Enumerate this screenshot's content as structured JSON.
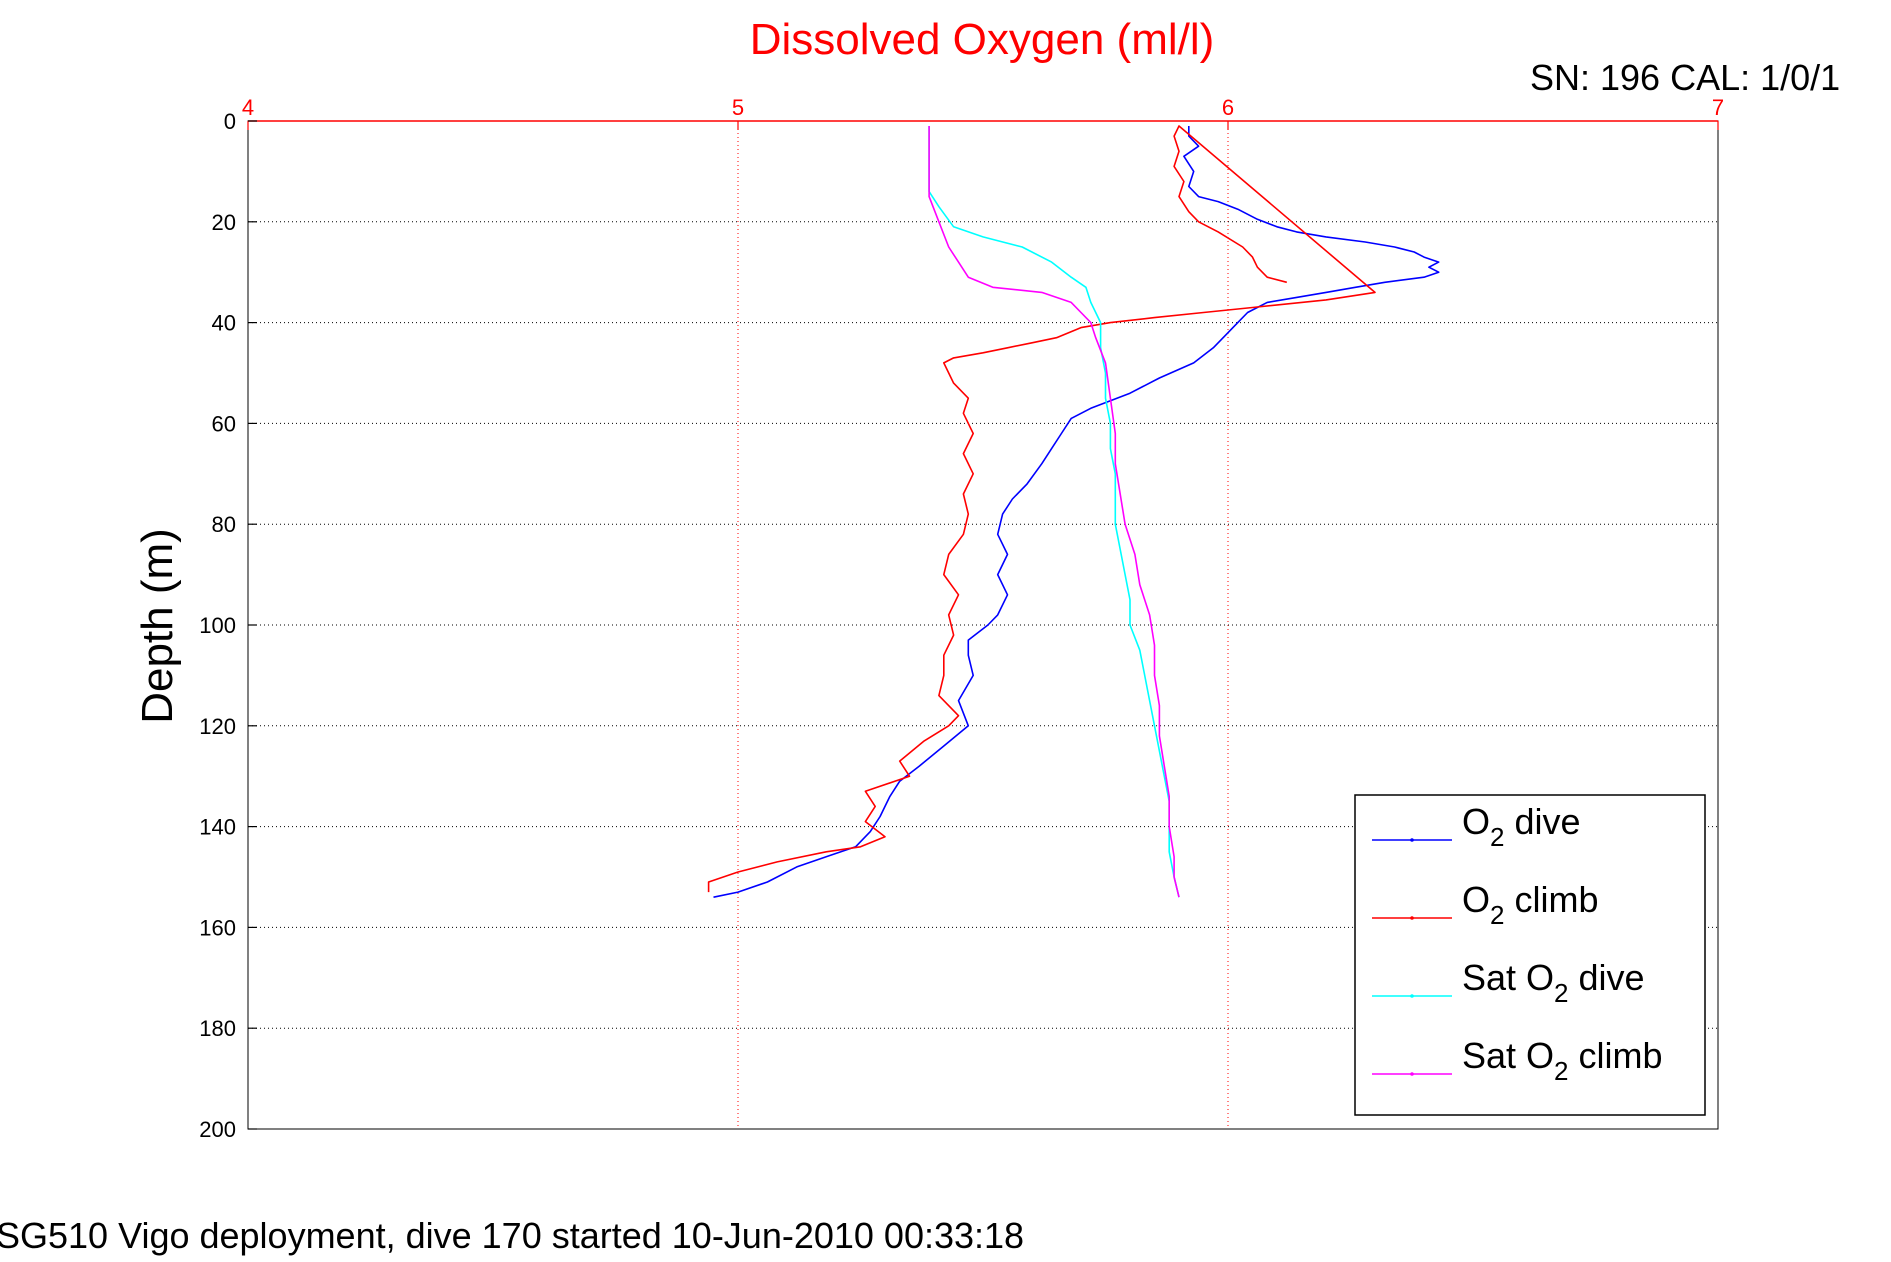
{
  "chart_data": {
    "type": "line",
    "title": "Dissolved Oxygen (ml/l)",
    "top_right_label": "SN: 196  CAL: 1/0/1",
    "footer": "SG510 Vigo deployment, dive 170 started 10-Jun-2010 00:33:18",
    "ylabel": "Depth (m)",
    "xlim": [
      4,
      7
    ],
    "ylim": [
      0,
      200
    ],
    "y_reversed": true,
    "x_axis_position": "top",
    "x_ticks": [
      "4",
      "5",
      "6",
      "7"
    ],
    "y_ticks": [
      "0",
      "20",
      "40",
      "60",
      "80",
      "100",
      "120",
      "140",
      "160",
      "180",
      "200"
    ],
    "grid": true,
    "legend_position": "bottom-right",
    "colors": {
      "axis_x": "#ff0000",
      "axis_y": "#000000",
      "grid_x": "#ff0000",
      "grid_y": "#000000",
      "title": "#ff0000"
    },
    "series": [
      {
        "name": "O2 dive",
        "legend": {
          "pre": "O",
          "sub": "2",
          "post": " dive"
        },
        "color": "#0000ff",
        "points": [
          [
            5.92,
            1
          ],
          [
            5.92,
            3
          ],
          [
            5.94,
            5
          ],
          [
            5.91,
            7
          ],
          [
            5.93,
            10
          ],
          [
            5.92,
            13
          ],
          [
            5.94,
            15
          ],
          [
            5.98,
            16
          ],
          [
            6.02,
            17.5
          ],
          [
            6.06,
            19.5
          ],
          [
            6.1,
            21
          ],
          [
            6.14,
            22
          ],
          [
            6.2,
            23
          ],
          [
            6.28,
            24
          ],
          [
            6.34,
            25
          ],
          [
            6.38,
            26
          ],
          [
            6.4,
            27
          ],
          [
            6.43,
            28
          ],
          [
            6.41,
            29
          ],
          [
            6.43,
            30
          ],
          [
            6.4,
            31
          ],
          [
            6.32,
            32
          ],
          [
            6.26,
            33
          ],
          [
            6.2,
            34
          ],
          [
            6.14,
            35
          ],
          [
            6.08,
            36
          ],
          [
            6.04,
            38
          ],
          [
            6.02,
            40
          ],
          [
            6.0,
            42
          ],
          [
            5.97,
            45
          ],
          [
            5.93,
            48
          ],
          [
            5.86,
            51
          ],
          [
            5.8,
            54
          ],
          [
            5.72,
            57
          ],
          [
            5.68,
            59
          ],
          [
            5.66,
            62
          ],
          [
            5.64,
            65
          ],
          [
            5.62,
            68
          ],
          [
            5.59,
            72
          ],
          [
            5.56,
            75
          ],
          [
            5.54,
            78
          ],
          [
            5.53,
            82
          ],
          [
            5.55,
            86
          ],
          [
            5.53,
            90
          ],
          [
            5.55,
            94
          ],
          [
            5.53,
            98
          ],
          [
            5.51,
            100
          ],
          [
            5.47,
            103
          ],
          [
            5.47,
            106
          ],
          [
            5.48,
            110
          ],
          [
            5.45,
            115
          ],
          [
            5.47,
            120
          ],
          [
            5.42,
            124
          ],
          [
            5.37,
            128
          ],
          [
            5.33,
            131
          ],
          [
            5.31,
            134
          ],
          [
            5.3,
            136
          ],
          [
            5.29,
            138
          ],
          [
            5.27,
            141
          ],
          [
            5.24,
            144
          ],
          [
            5.18,
            146
          ],
          [
            5.12,
            148
          ],
          [
            5.06,
            151
          ],
          [
            5.0,
            153
          ],
          [
            4.95,
            154
          ]
        ]
      },
      {
        "name": "O2 climb",
        "legend": {
          "pre": "O",
          "sub": "2",
          "post": " climb"
        },
        "color": "#ff0000",
        "points": [
          [
            6.12,
            32
          ],
          [
            6.08,
            31
          ],
          [
            6.06,
            29
          ],
          [
            6.05,
            27
          ],
          [
            6.03,
            25
          ],
          [
            5.98,
            22
          ],
          [
            5.94,
            20
          ],
          [
            5.92,
            18
          ],
          [
            5.9,
            15
          ],
          [
            5.91,
            12
          ],
          [
            5.89,
            9
          ],
          [
            5.9,
            6
          ],
          [
            5.89,
            3
          ],
          [
            5.9,
            1
          ],
          [
            6.3,
            34
          ],
          [
            6.2,
            35.5
          ],
          [
            6.05,
            37
          ],
          [
            5.95,
            38
          ],
          [
            5.85,
            39
          ],
          [
            5.76,
            40
          ],
          [
            5.7,
            41
          ],
          [
            5.65,
            43
          ],
          [
            5.6,
            44
          ],
          [
            5.55,
            45
          ],
          [
            5.5,
            46
          ],
          [
            5.44,
            47
          ],
          [
            5.42,
            48
          ],
          [
            5.43,
            50
          ],
          [
            5.44,
            52
          ],
          [
            5.47,
            55
          ],
          [
            5.46,
            58
          ],
          [
            5.48,
            62
          ],
          [
            5.46,
            66
          ],
          [
            5.48,
            70
          ],
          [
            5.46,
            74
          ],
          [
            5.47,
            78
          ],
          [
            5.46,
            82
          ],
          [
            5.43,
            86
          ],
          [
            5.42,
            90
          ],
          [
            5.45,
            94
          ],
          [
            5.43,
            98
          ],
          [
            5.44,
            102
          ],
          [
            5.42,
            106
          ],
          [
            5.42,
            110
          ],
          [
            5.41,
            114
          ],
          [
            5.45,
            118
          ],
          [
            5.43,
            120
          ],
          [
            5.38,
            123
          ],
          [
            5.33,
            127
          ],
          [
            5.35,
            130
          ],
          [
            5.26,
            133
          ],
          [
            5.28,
            136
          ],
          [
            5.26,
            139
          ],
          [
            5.3,
            142
          ],
          [
            5.25,
            144
          ],
          [
            5.18,
            145
          ],
          [
            5.08,
            147
          ],
          [
            5.0,
            149
          ],
          [
            4.94,
            151
          ],
          [
            4.94,
            153
          ]
        ]
      },
      {
        "name": "Sat O2 dive",
        "legend": {
          "pre": "Sat O",
          "sub": "2",
          "post": " dive"
        },
        "color": "#00ffff",
        "points": [
          [
            5.39,
            1
          ],
          [
            5.39,
            5
          ],
          [
            5.39,
            10
          ],
          [
            5.39,
            14
          ],
          [
            5.41,
            17
          ],
          [
            5.44,
            21
          ],
          [
            5.5,
            23
          ],
          [
            5.58,
            25
          ],
          [
            5.64,
            28
          ],
          [
            5.68,
            31
          ],
          [
            5.71,
            33
          ],
          [
            5.72,
            36
          ],
          [
            5.74,
            40
          ],
          [
            5.74,
            45
          ],
          [
            5.75,
            50
          ],
          [
            5.75,
            55
          ],
          [
            5.76,
            60
          ],
          [
            5.76,
            65
          ],
          [
            5.77,
            70
          ],
          [
            5.77,
            75
          ],
          [
            5.77,
            80
          ],
          [
            5.78,
            85
          ],
          [
            5.79,
            90
          ],
          [
            5.8,
            95
          ],
          [
            5.8,
            100
          ],
          [
            5.82,
            105
          ],
          [
            5.83,
            110
          ],
          [
            5.84,
            115
          ],
          [
            5.85,
            120
          ],
          [
            5.86,
            125
          ],
          [
            5.87,
            130
          ],
          [
            5.88,
            135
          ],
          [
            5.88,
            140
          ],
          [
            5.88,
            145
          ],
          [
            5.89,
            150
          ],
          [
            5.9,
            154
          ]
        ]
      },
      {
        "name": "Sat O2 climb",
        "legend": {
          "pre": "Sat O",
          "sub": "2",
          "post": " climb"
        },
        "color": "#ff00ff",
        "points": [
          [
            5.39,
            1
          ],
          [
            5.39,
            5
          ],
          [
            5.39,
            10
          ],
          [
            5.39,
            15
          ],
          [
            5.41,
            20
          ],
          [
            5.43,
            25
          ],
          [
            5.45,
            28
          ],
          [
            5.47,
            31
          ],
          [
            5.52,
            33
          ],
          [
            5.62,
            34
          ],
          [
            5.68,
            36
          ],
          [
            5.7,
            38
          ],
          [
            5.72,
            40
          ],
          [
            5.73,
            43
          ],
          [
            5.75,
            48
          ],
          [
            5.76,
            55
          ],
          [
            5.77,
            62
          ],
          [
            5.77,
            68
          ],
          [
            5.78,
            74
          ],
          [
            5.79,
            80
          ],
          [
            5.81,
            86
          ],
          [
            5.82,
            92
          ],
          [
            5.84,
            98
          ],
          [
            5.85,
            104
          ],
          [
            5.85,
            110
          ],
          [
            5.86,
            116
          ],
          [
            5.86,
            122
          ],
          [
            5.87,
            128
          ],
          [
            5.88,
            134
          ],
          [
            5.88,
            140
          ],
          [
            5.89,
            146
          ],
          [
            5.89,
            150
          ],
          [
            5.9,
            154
          ]
        ]
      }
    ]
  }
}
